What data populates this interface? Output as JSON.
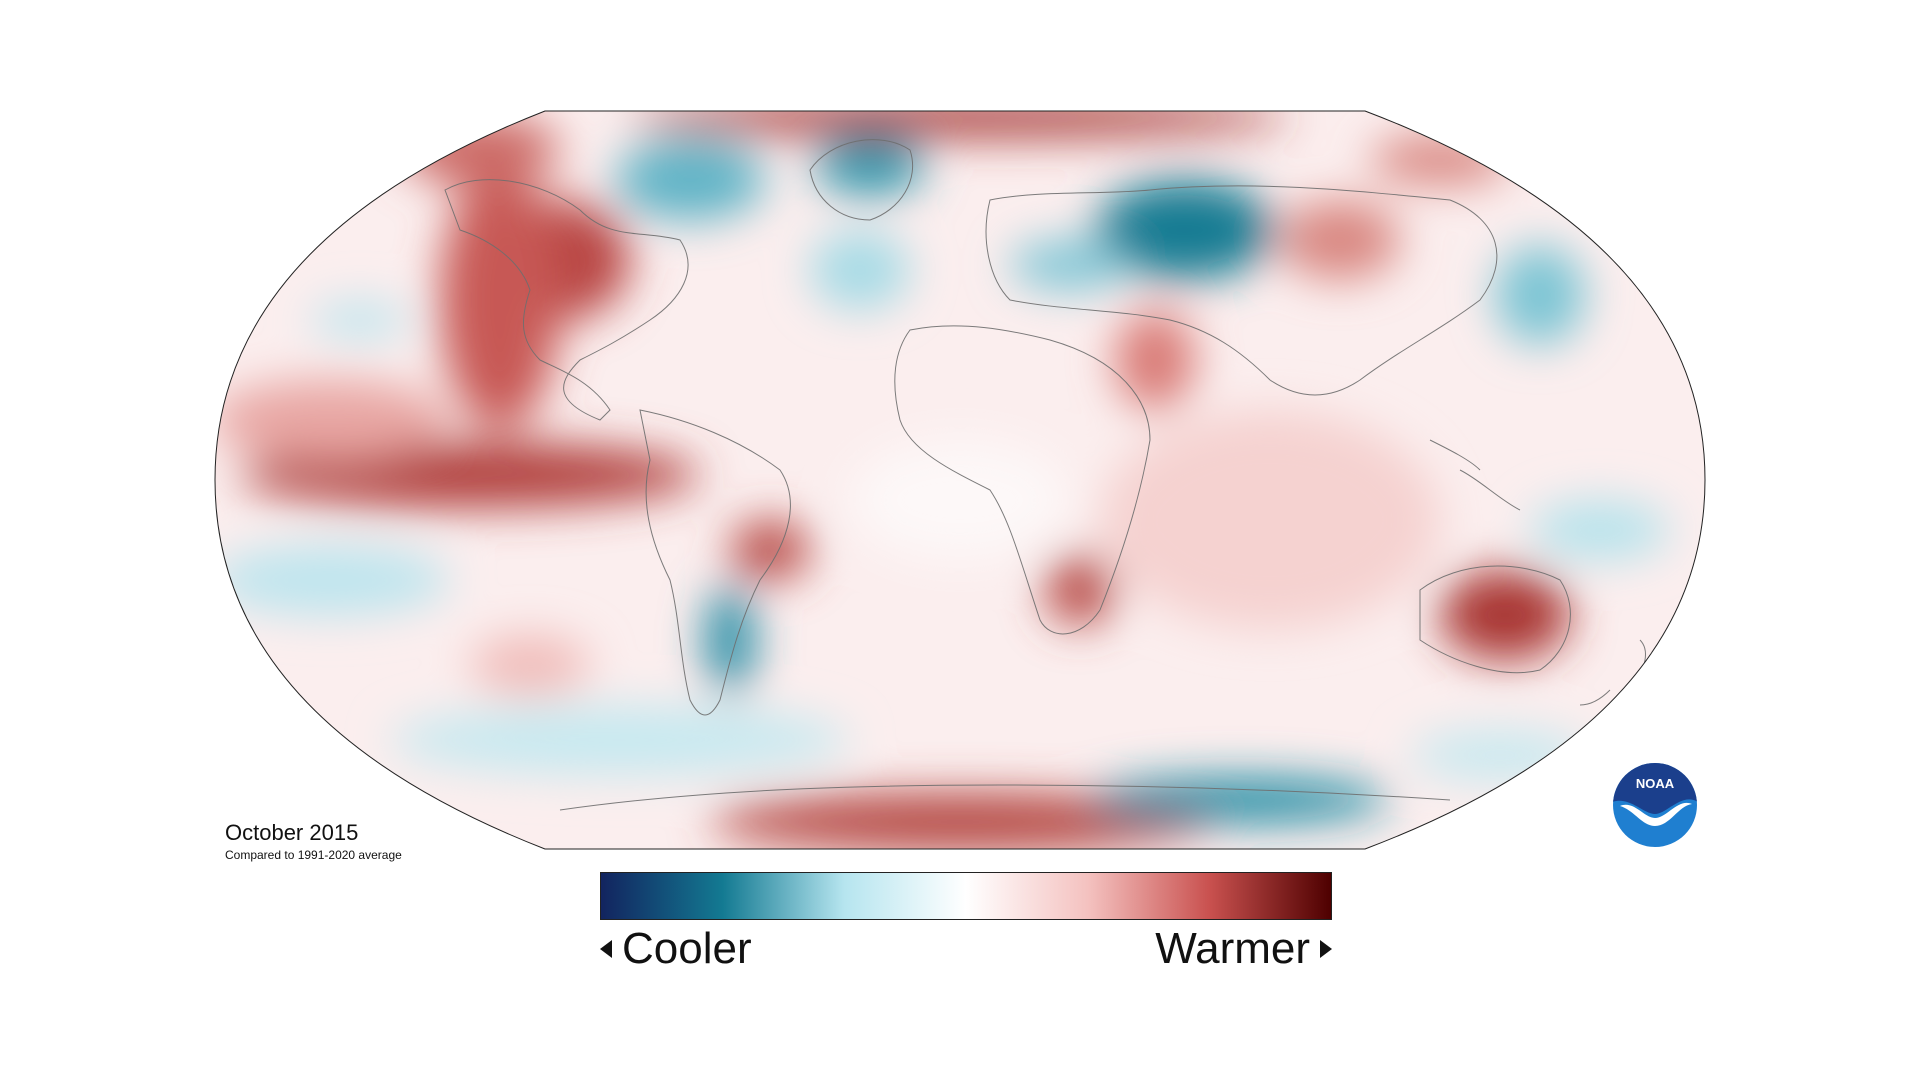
{
  "map": {
    "projection": "Robinson",
    "colors": {
      "cool_extreme": "#12245f",
      "cool": "#137a92",
      "neutral": "#ffffff",
      "warm": "#c9514f",
      "warm_extreme": "#4e0000",
      "coastline": "#6e6e6e"
    }
  },
  "caption": {
    "period": "October 2015",
    "baseline": "Compared to 1991-2020 average"
  },
  "legend": {
    "cooler_label": "Cooler",
    "warmer_label": "Warmer",
    "cooler_icon": "triangle-left-icon",
    "warmer_icon": "triangle-right-icon",
    "stops": [
      "#12245f",
      "#137a92",
      "#b6e5ef",
      "#ffffff",
      "#f4c2c0",
      "#c9514f",
      "#4e0000"
    ]
  },
  "logo": {
    "text": "NOAA",
    "icon": "noaa-logo-icon",
    "colors": {
      "top": "#1b3f8c",
      "bottom": "#1f7fd0",
      "bird": "#ffffff"
    }
  }
}
